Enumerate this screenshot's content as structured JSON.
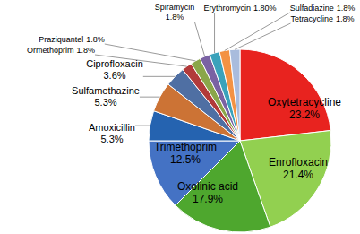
{
  "chart_data": {
    "type": "pie",
    "categories": [
      "Oxytetracycline",
      "Enrofloxacin",
      "Oxolinic acid",
      "Trimethoprim",
      "Amoxicillin",
      "Sulfamethazine",
      "Ciprofloxacin",
      "Ormethoprim",
      "Praziquantel",
      "Spiramycin",
      "Erythromycin",
      "Sulfadiazine",
      "Tetracycline"
    ],
    "values": [
      23.2,
      21.4,
      17.9,
      12.5,
      5.3,
      5.3,
      3.6,
      1.8,
      1.8,
      1.8,
      1.8,
      1.8,
      1.8
    ],
    "value_labels": [
      "23.2%",
      "21.4%",
      "17.9%",
      "12.5%",
      "5.3%",
      "5.3%",
      "3.6%",
      "1.8%",
      "1.8%",
      "1.8%",
      "1.80%",
      "1.8%",
      "1.8%"
    ],
    "colors": [
      "#e8231f",
      "#92d050",
      "#4ea72e",
      "#4472c4",
      "#2563b0",
      "#cc7335",
      "#4f6fa3",
      "#b23a3a",
      "#8aa64a",
      "#7a62a3",
      "#3aa2bb",
      "#f39243",
      "#a9bcdd"
    ],
    "data_labels": true
  }
}
